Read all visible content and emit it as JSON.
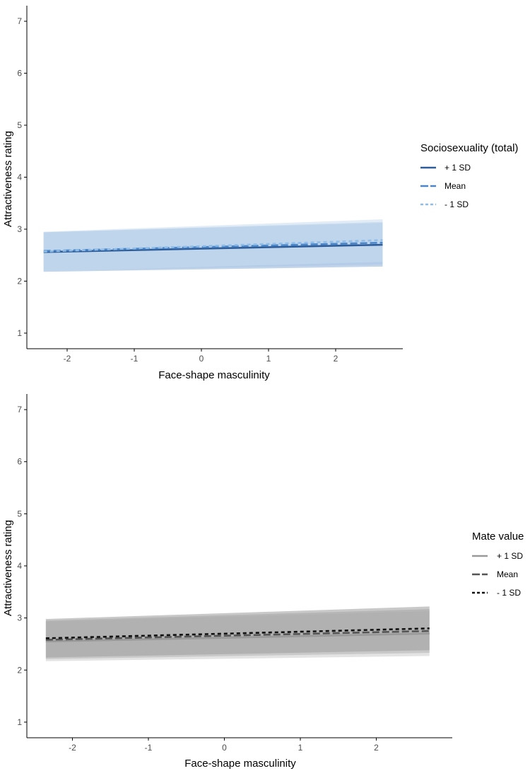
{
  "chart_data": [
    {
      "type": "line",
      "panel": "top",
      "xlabel": "Face-shape masculinity",
      "ylabel": "Attractiveness rating",
      "xlim": [
        -2.6,
        3.0
      ],
      "ylim": [
        0.7,
        7.3
      ],
      "xticks": [
        -2,
        -1,
        0,
        1,
        2
      ],
      "yticks": [
        1,
        2,
        3,
        4,
        5,
        6,
        7
      ],
      "xtick_labels": [
        "-2",
        "-1",
        "0",
        "1",
        "2"
      ],
      "ytick_labels": [
        "1",
        "2",
        "3",
        "4",
        "5",
        "6",
        "7"
      ],
      "grid": false,
      "legend": {
        "title": "Sociosexuality (total)",
        "placement": "right",
        "labels": [
          "+ 1 SD",
          "Mean",
          "- 1 SD"
        ]
      },
      "series": [
        {
          "name": "+ 1 SD",
          "x": [
            -2.35,
            2.7
          ],
          "y": [
            2.56,
            2.7
          ],
          "ci_lower": [
            2.18,
            2.28
          ],
          "ci_upper": [
            2.94,
            3.12
          ],
          "color": "#2e5d9a",
          "dash": "solid",
          "band_color": "#8eb0d8"
        },
        {
          "name": "Mean",
          "x": [
            -2.35,
            2.7
          ],
          "y": [
            2.58,
            2.74
          ],
          "ci_lower": [
            2.2,
            2.32
          ],
          "ci_upper": [
            2.94,
            3.14
          ],
          "color": "#4a86c8",
          "dash": "longdash",
          "band_color": "#a9c4e4"
        },
        {
          "name": "- 1 SD",
          "x": [
            -2.35,
            2.7
          ],
          "y": [
            2.57,
            2.79
          ],
          "ci_lower": [
            2.19,
            2.37
          ],
          "ci_upper": [
            2.95,
            3.19
          ],
          "color": "#8fbde8",
          "dash": "dashed",
          "band_color": "#c8dcf0"
        }
      ]
    },
    {
      "type": "line",
      "panel": "bottom",
      "xlabel": "Face-shape masculinity",
      "ylabel": "Attractiveness rating",
      "xlim": [
        -2.6,
        3.0
      ],
      "ylim": [
        0.7,
        7.3
      ],
      "xticks": [
        -2,
        -1,
        0,
        1,
        2
      ],
      "yticks": [
        1,
        2,
        3,
        4,
        5,
        6,
        7
      ],
      "xtick_labels": [
        "-2",
        "-1",
        "0",
        "1",
        "2"
      ],
      "ytick_labels": [
        "1",
        "2",
        "3",
        "4",
        "5",
        "6",
        "7"
      ],
      "grid": false,
      "legend": {
        "title": "Mate value",
        "placement": "right",
        "labels": [
          "+ 1 SD",
          "Mean",
          "- 1 SD"
        ]
      },
      "series": [
        {
          "name": "+ 1 SD",
          "x": [
            -2.35,
            2.7
          ],
          "y": [
            2.55,
            2.7
          ],
          "ci_lower": [
            2.17,
            2.27
          ],
          "ci_upper": [
            2.93,
            3.13
          ],
          "color": "#999999",
          "dash": "solid",
          "band_color": "#cccccc"
        },
        {
          "name": "Mean",
          "x": [
            -2.35,
            2.7
          ],
          "y": [
            2.58,
            2.75
          ],
          "ci_lower": [
            2.21,
            2.33
          ],
          "ci_upper": [
            2.95,
            3.17
          ],
          "color": "#555555",
          "dash": "longdash",
          "band_color": "#b5b5b5"
        },
        {
          "name": "- 1 SD",
          "x": [
            -2.35,
            2.7
          ],
          "y": [
            2.61,
            2.8
          ],
          "ci_lower": [
            2.24,
            2.38
          ],
          "ci_upper": [
            2.98,
            3.22
          ],
          "color": "#111111",
          "dash": "dashed",
          "band_color": "#9c9c9c"
        }
      ]
    }
  ]
}
